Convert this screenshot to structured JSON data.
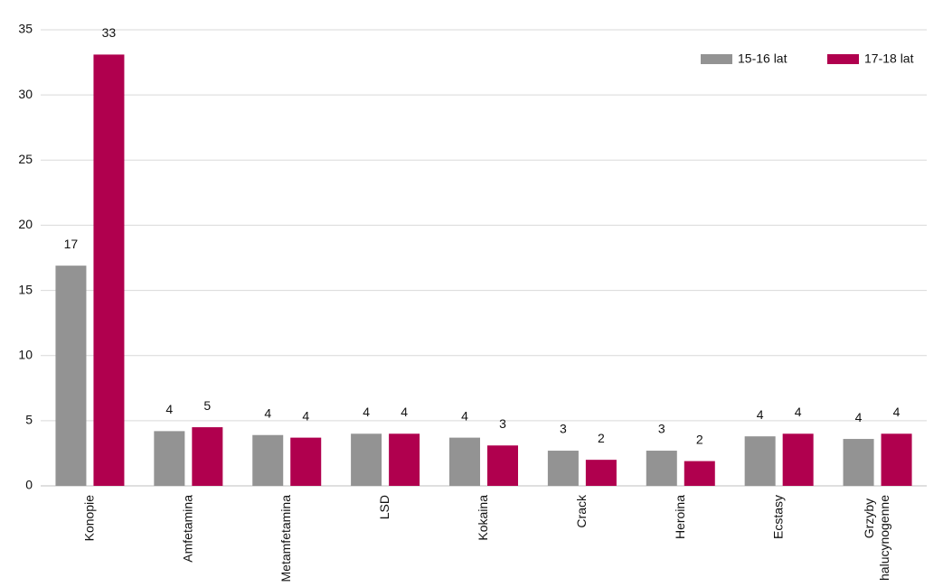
{
  "chart_data": {
    "type": "bar",
    "categories": [
      "Konopie",
      "Amfetamina",
      "Metamfetamina",
      "LSD",
      "Kokaina",
      "Crack",
      "Heroina",
      "Ecstasy",
      "Grzyby halucynogenne"
    ],
    "series": [
      {
        "name": "15-16 lat",
        "color": "#939393",
        "values": [
          16.9,
          4.2,
          3.9,
          4.0,
          3.7,
          2.7,
          2.7,
          3.8,
          3.6
        ],
        "value_labels": [
          "17",
          "4",
          "4",
          "4",
          "4",
          "3",
          "3",
          "4",
          "4"
        ]
      },
      {
        "name": "17-18 lat",
        "color": "#b0004e",
        "values": [
          33.1,
          4.5,
          3.7,
          4.0,
          3.1,
          2.0,
          1.9,
          4.0,
          4.0
        ],
        "value_labels": [
          "33",
          "5",
          "4",
          "4",
          "3",
          "2",
          "2",
          "4",
          "4"
        ]
      }
    ],
    "ylim": [
      0,
      35
    ],
    "yticks": [
      0,
      5,
      10,
      15,
      20,
      25,
      30,
      35
    ],
    "grid": true,
    "legend": "top-right"
  }
}
